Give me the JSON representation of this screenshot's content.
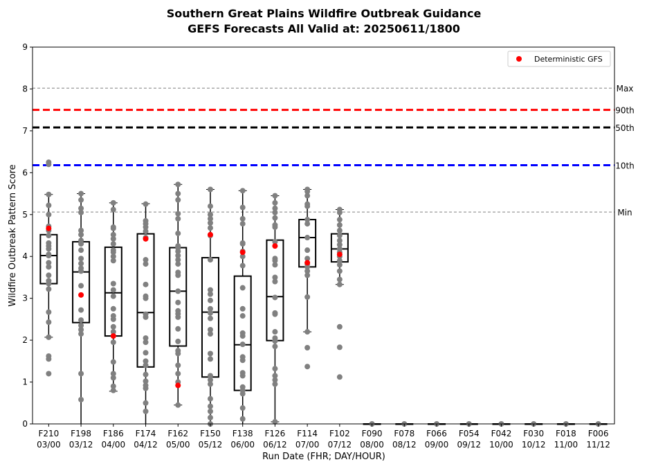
{
  "chart_data": {
    "type": "box",
    "title_line1": "Southern Great Plains Wildfire Outbreak Guidance",
    "title_line2": "GEFS Forecasts All Valid at: 20250611/1800",
    "xlabel": "Run Date (FHR; DAY/HOUR)",
    "ylabel": "Wildfire Outbreak Pattern Score",
    "ylim": [
      0,
      9
    ],
    "yticks": [
      "0",
      "1",
      "2",
      "3",
      "4",
      "5",
      "6",
      "7",
      "8",
      "9"
    ],
    "reference_lines": [
      {
        "label": "Max",
        "value": 8.02,
        "color": "#808080",
        "style": "thin"
      },
      {
        "label": "90th",
        "value": 7.5,
        "color": "#ff0000",
        "style": "thick"
      },
      {
        "label": "50th",
        "value": 7.08,
        "color": "#000000",
        "style": "thick"
      },
      {
        "label": "10th",
        "value": 6.18,
        "color": "#0000ff",
        "style": "thick"
      },
      {
        "label": "Min",
        "value": 5.06,
        "color": "#808080",
        "style": "thin"
      }
    ],
    "legend": {
      "label": "Deterministic GFS",
      "position": "top-right",
      "color": "#ff0000"
    },
    "categories": [
      {
        "fhr": "F210",
        "day": "03/00",
        "box": {
          "whislo": 2.07,
          "q1": 3.35,
          "med": 4.02,
          "q3": 4.52,
          "whishi": 5.48
        },
        "members": [
          1.2,
          1.55,
          1.62,
          2.07,
          2.43,
          2.67,
          3.22,
          3.35,
          3.42,
          3.55,
          3.75,
          3.85,
          4.02,
          4.05,
          4.18,
          4.25,
          4.32,
          4.5,
          4.62,
          4.72,
          5.0,
          5.22,
          5.48,
          6.2,
          6.25
        ],
        "gfs": 4.67
      },
      {
        "fhr": "F198",
        "day": "03/12",
        "box": {
          "whislo": 0.0,
          "q1": 2.42,
          "med": 3.63,
          "q3": 4.35,
          "whishi": 5.5
        },
        "members": [
          0.58,
          1.2,
          2.15,
          2.25,
          2.35,
          2.48,
          2.72,
          3.3,
          3.65,
          3.72,
          3.83,
          3.95,
          4.15,
          4.3,
          4.38,
          4.52,
          4.62,
          5.05,
          5.15,
          5.35,
          5.5
        ],
        "gfs": 3.08
      },
      {
        "fhr": "F186",
        "day": "04/00",
        "box": {
          "whislo": 0.78,
          "q1": 2.1,
          "med": 3.13,
          "q3": 4.22,
          "whishi": 5.28
        },
        "members": [
          0.8,
          0.9,
          1.1,
          1.2,
          1.48,
          1.95,
          2.1,
          2.2,
          2.32,
          2.5,
          2.58,
          2.75,
          3.05,
          3.2,
          3.35,
          3.9,
          4.0,
          4.1,
          4.15,
          4.3,
          4.42,
          4.52,
          4.67,
          4.7,
          5.12,
          5.28
        ],
        "gfs": 2.1
      },
      {
        "fhr": "F174",
        "day": "04/12",
        "box": {
          "whislo": 0.0,
          "q1": 1.36,
          "med": 2.66,
          "q3": 4.54,
          "whishi": 5.26
        },
        "members": [
          0.3,
          0.5,
          0.85,
          0.92,
          1.02,
          1.18,
          1.4,
          1.5,
          1.7,
          1.95,
          2.05,
          2.55,
          2.62,
          3.0,
          3.05,
          3.33,
          3.82,
          3.92,
          4.45,
          4.6,
          4.7,
          4.78,
          4.85,
          5.25
        ],
        "gfs": 4.42
      },
      {
        "fhr": "F162",
        "day": "05/00",
        "box": {
          "whislo": 0.45,
          "q1": 1.86,
          "med": 3.17,
          "q3": 4.21,
          "whishi": 5.72
        },
        "members": [
          0.45,
          1.0,
          1.2,
          1.4,
          1.68,
          1.75,
          1.97,
          2.27,
          2.55,
          2.63,
          2.7,
          2.9,
          3.17,
          3.55,
          3.62,
          3.82,
          3.92,
          4.02,
          4.12,
          4.2,
          4.25,
          4.55,
          4.9,
          5.02,
          5.35,
          5.5,
          5.72
        ],
        "gfs": 0.92
      },
      {
        "fhr": "F150",
        "day": "05/12",
        "box": {
          "whislo": 0.0,
          "q1": 1.12,
          "med": 2.67,
          "q3": 3.97,
          "whishi": 5.6
        },
        "members": [
          0.0,
          0.15,
          0.3,
          0.42,
          0.6,
          0.95,
          1.05,
          1.15,
          1.55,
          1.68,
          2.15,
          2.25,
          2.52,
          2.65,
          2.75,
          2.95,
          3.1,
          3.2,
          3.92,
          4.5,
          4.68,
          4.8,
          4.9,
          5.0,
          5.2,
          5.6
        ],
        "gfs": 4.52
      },
      {
        "fhr": "F138",
        "day": "06/00",
        "box": {
          "whislo": 0.0,
          "q1": 0.8,
          "med": 1.89,
          "q3": 3.53,
          "whishi": 5.57
        },
        "members": [
          0.12,
          0.38,
          0.72,
          0.8,
          0.88,
          1.15,
          1.22,
          1.52,
          1.6,
          1.9,
          2.1,
          2.17,
          2.58,
          2.75,
          3.25,
          3.78,
          4.0,
          4.12,
          4.3,
          4.32,
          4.78,
          4.9,
          5.17,
          5.57
        ],
        "gfs": 4.1
      },
      {
        "fhr": "F126",
        "day": "06/12",
        "box": {
          "whislo": 0.05,
          "q1": 1.99,
          "med": 3.04,
          "q3": 4.39,
          "whishi": 5.45
        },
        "members": [
          0.05,
          0.95,
          1.05,
          1.15,
          1.32,
          1.85,
          1.98,
          2.05,
          2.2,
          2.62,
          2.65,
          3.02,
          3.4,
          3.5,
          3.8,
          3.9,
          3.95,
          4.35,
          4.7,
          4.75,
          4.92,
          5.05,
          5.15,
          5.28,
          5.45
        ],
        "gfs": 4.25
      },
      {
        "fhr": "F114",
        "day": "07/00",
        "box": {
          "whislo": 2.2,
          "q1": 3.75,
          "med": 4.45,
          "q3": 4.88,
          "whishi": 5.6
        },
        "members": [
          1.37,
          1.82,
          2.2,
          3.03,
          3.55,
          3.65,
          3.75,
          3.82,
          3.95,
          4.15,
          4.45,
          4.78,
          4.88,
          5.2,
          5.25,
          5.45,
          5.55,
          5.6
        ],
        "gfs": 3.85
      },
      {
        "fhr": "F102",
        "day": "07/12",
        "box": {
          "whislo": 3.33,
          "q1": 3.87,
          "med": 4.18,
          "q3": 4.54,
          "whishi": 5.12
        },
        "members": [
          1.12,
          1.83,
          2.32,
          3.33,
          3.45,
          3.65,
          3.8,
          3.9,
          4.0,
          4.1,
          4.18,
          4.28,
          4.38,
          4.5,
          4.62,
          4.75,
          4.88,
          5.05,
          5.12
        ],
        "gfs": 4.05
      },
      {
        "fhr": "F090",
        "day": "08/00",
        "box": {
          "whislo": 0,
          "q1": 0,
          "med": 0,
          "q3": 0,
          "whishi": 0
        },
        "members": [
          0
        ],
        "gfs": null
      },
      {
        "fhr": "F078",
        "day": "08/12",
        "box": {
          "whislo": 0,
          "q1": 0,
          "med": 0,
          "q3": 0,
          "whishi": 0
        },
        "members": [
          0
        ],
        "gfs": null
      },
      {
        "fhr": "F066",
        "day": "09/00",
        "box": {
          "whislo": 0,
          "q1": 0,
          "med": 0,
          "q3": 0,
          "whishi": 0
        },
        "members": [
          0
        ],
        "gfs": null
      },
      {
        "fhr": "F054",
        "day": "09/12",
        "box": {
          "whislo": 0,
          "q1": 0,
          "med": 0,
          "q3": 0,
          "whishi": 0
        },
        "members": [
          0
        ],
        "gfs": null
      },
      {
        "fhr": "F042",
        "day": "10/00",
        "box": {
          "whislo": 0,
          "q1": 0,
          "med": 0,
          "q3": 0,
          "whishi": 0
        },
        "members": [
          0
        ],
        "gfs": null
      },
      {
        "fhr": "F030",
        "day": "10/12",
        "box": {
          "whislo": 0,
          "q1": 0,
          "med": 0,
          "q3": 0,
          "whishi": 0
        },
        "members": [
          0
        ],
        "gfs": null
      },
      {
        "fhr": "F018",
        "day": "11/00",
        "box": {
          "whislo": 0,
          "q1": 0,
          "med": 0,
          "q3": 0,
          "whishi": 0
        },
        "members": [
          0
        ],
        "gfs": null
      },
      {
        "fhr": "F006",
        "day": "11/12",
        "box": {
          "whislo": 0,
          "q1": 0,
          "med": 0,
          "q3": 0,
          "whishi": 0
        },
        "members": [
          0
        ],
        "gfs": null
      }
    ],
    "colors": {
      "member": "#808080",
      "gfs": "#ff0000",
      "box": "#000000"
    }
  }
}
